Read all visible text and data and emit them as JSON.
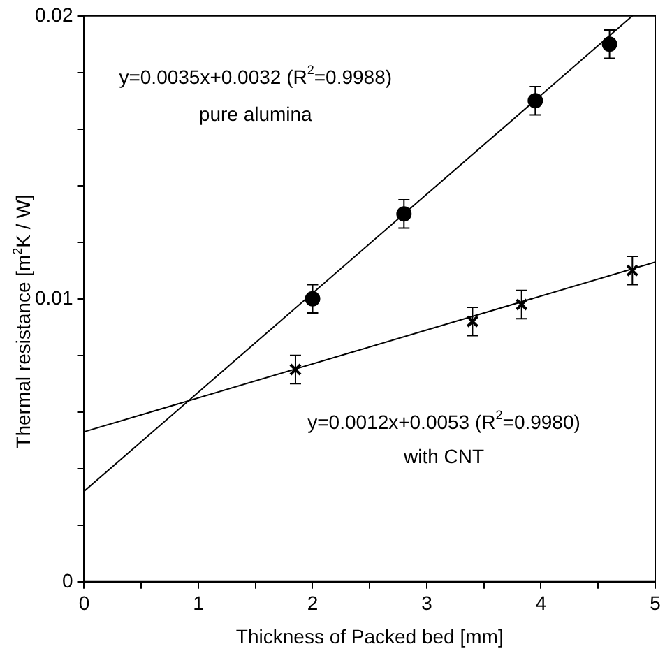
{
  "chart_data": {
    "type": "scatter",
    "xlabel": "Thickness of Packed bed [mm]",
    "ylabel": "Thermal resistance [m$^{2}$K / W]",
    "xlim": [
      0,
      5
    ],
    "ylim": [
      0,
      0.02
    ],
    "xticks": [
      0,
      {
        "value": 0.5,
        "label": null
      },
      1,
      {
        "value": 1.5,
        "label": null
      },
      2,
      {
        "value": 2.5,
        "label": null
      },
      3,
      {
        "value": 3.5,
        "label": null
      },
      4,
      {
        "value": 4.5,
        "label": null
      },
      5
    ],
    "yticks": [
      0,
      {
        "value": 0.002,
        "label": null
      },
      {
        "value": 0.004,
        "label": null
      },
      {
        "value": 0.006,
        "label": null
      },
      {
        "value": 0.008,
        "label": null
      },
      {
        "value": 0.01,
        "label": "0.01"
      },
      {
        "value": 0.012,
        "label": null
      },
      {
        "value": 0.014,
        "label": null
      },
      {
        "value": 0.016,
        "label": null
      },
      {
        "value": 0.018,
        "label": null
      },
      0.02
    ],
    "grid": false,
    "legend": false,
    "series": [
      {
        "type": "scatter",
        "marker": "circle",
        "color": "#000000",
        "x": [
          2.0,
          2.8,
          3.95,
          4.6
        ],
        "values": [
          0.01,
          0.013,
          0.017,
          0.019
        ],
        "errors": [
          0.0005,
          0.0005,
          0.0005,
          0.0005
        ]
      },
      {
        "type": "scatter",
        "marker": "cross",
        "color": "#000000",
        "x": [
          1.85,
          3.4,
          3.83,
          4.8
        ],
        "values": [
          0.0075,
          0.0092,
          0.0098,
          0.011
        ],
        "errors": [
          0.0005,
          0.0005,
          0.0005,
          0.0005
        ]
      },
      {
        "type": "line",
        "marker": "none",
        "color": "#000000",
        "x": [
          0,
          4.8
        ],
        "values": [
          0.0032,
          0.02
        ]
      },
      {
        "type": "line",
        "marker": "none",
        "color": "#000000",
        "x": [
          0,
          5
        ],
        "values": [
          0.0053,
          0.0113
        ]
      }
    ],
    "annotations": [
      "y=0.0035x+0.0032 (R$^{2}$=0.9988)",
      "pure alumina",
      "y=0.0012x+0.0053 (R$^{2}$=0.9980)",
      "with CNT"
    ]
  }
}
